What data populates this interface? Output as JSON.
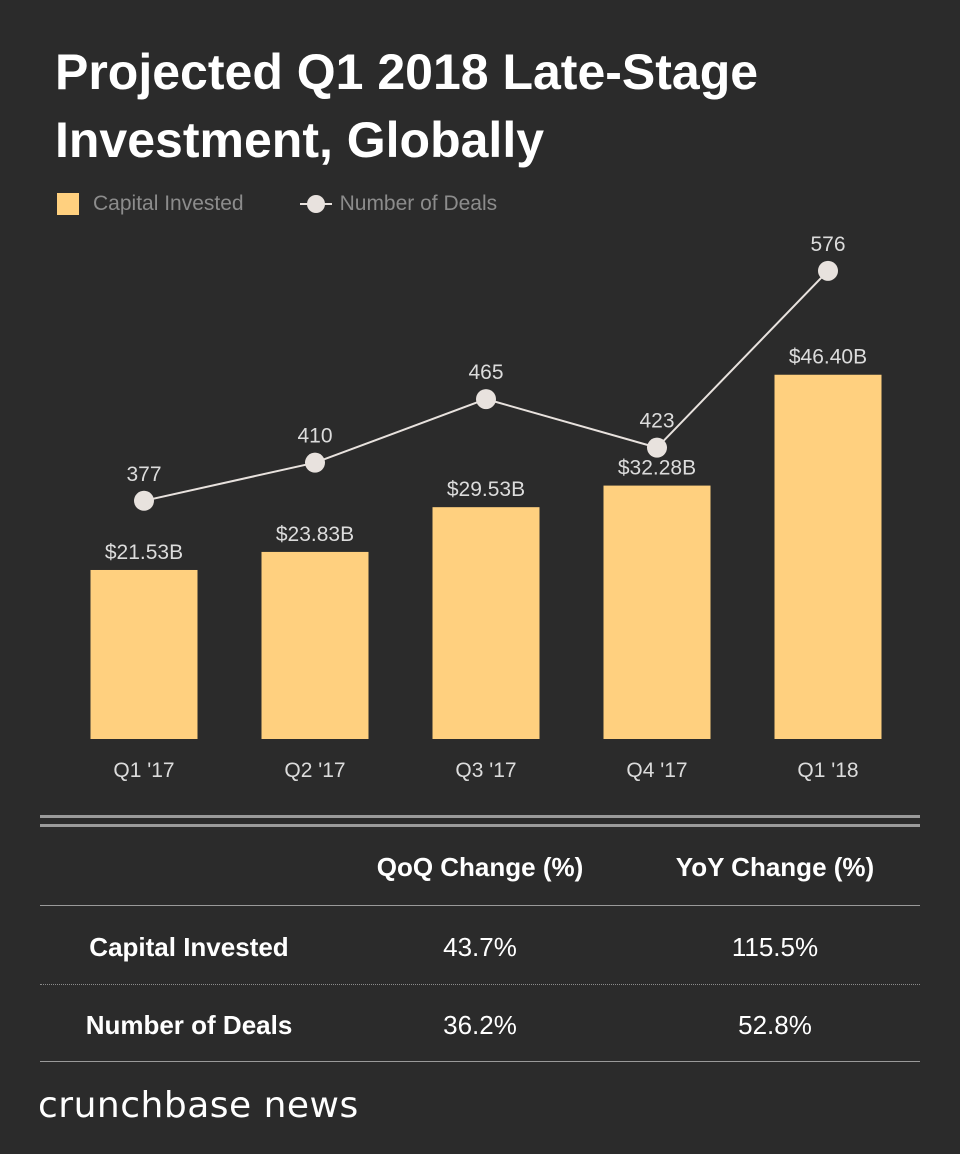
{
  "title": "Projected Q1 2018 Late-Stage Investment, Globally",
  "legend": {
    "bar_label": "Capital Invested",
    "line_label": "Number of Deals"
  },
  "colors": {
    "background": "#2b2b2b",
    "bar": "#ffd07f",
    "line": "#e8e2de",
    "muted_text": "#8c8c8c",
    "axis_text": "#dcdcdc",
    "rule": "#9a9a9a"
  },
  "chart_data": {
    "type": "bar",
    "categories": [
      "Q1 '17",
      "Q2 '17",
      "Q3 '17",
      "Q4 '17",
      "Q1 '18"
    ],
    "series": [
      {
        "name": "Capital Invested",
        "type": "bar",
        "values": [
          21.53,
          23.83,
          29.53,
          32.28,
          46.4
        ],
        "labels": [
          "$21.53B",
          "$23.83B",
          "$29.53B",
          "$32.28B",
          "$46.40B"
        ],
        "unit": "billion USD"
      },
      {
        "name": "Number of Deals",
        "type": "line",
        "values": [
          377,
          410,
          465,
          423,
          576
        ],
        "labels": [
          "377",
          "410",
          "465",
          "423",
          "576"
        ]
      }
    ],
    "bar_ylim": [
      0,
      53.5
    ],
    "line_ylim": [
      170,
      620
    ],
    "legend_position": "top-left",
    "grid": false
  },
  "table": {
    "headers": [
      "",
      "QoQ Change (%)",
      "YoY Change (%)"
    ],
    "rows": [
      {
        "label": "Capital Invested",
        "qoq": "43.7%",
        "yoy": "115.5%"
      },
      {
        "label": "Number of Deals",
        "qoq": "36.2%",
        "yoy": "52.8%"
      }
    ]
  },
  "brand": "crunchbase news"
}
